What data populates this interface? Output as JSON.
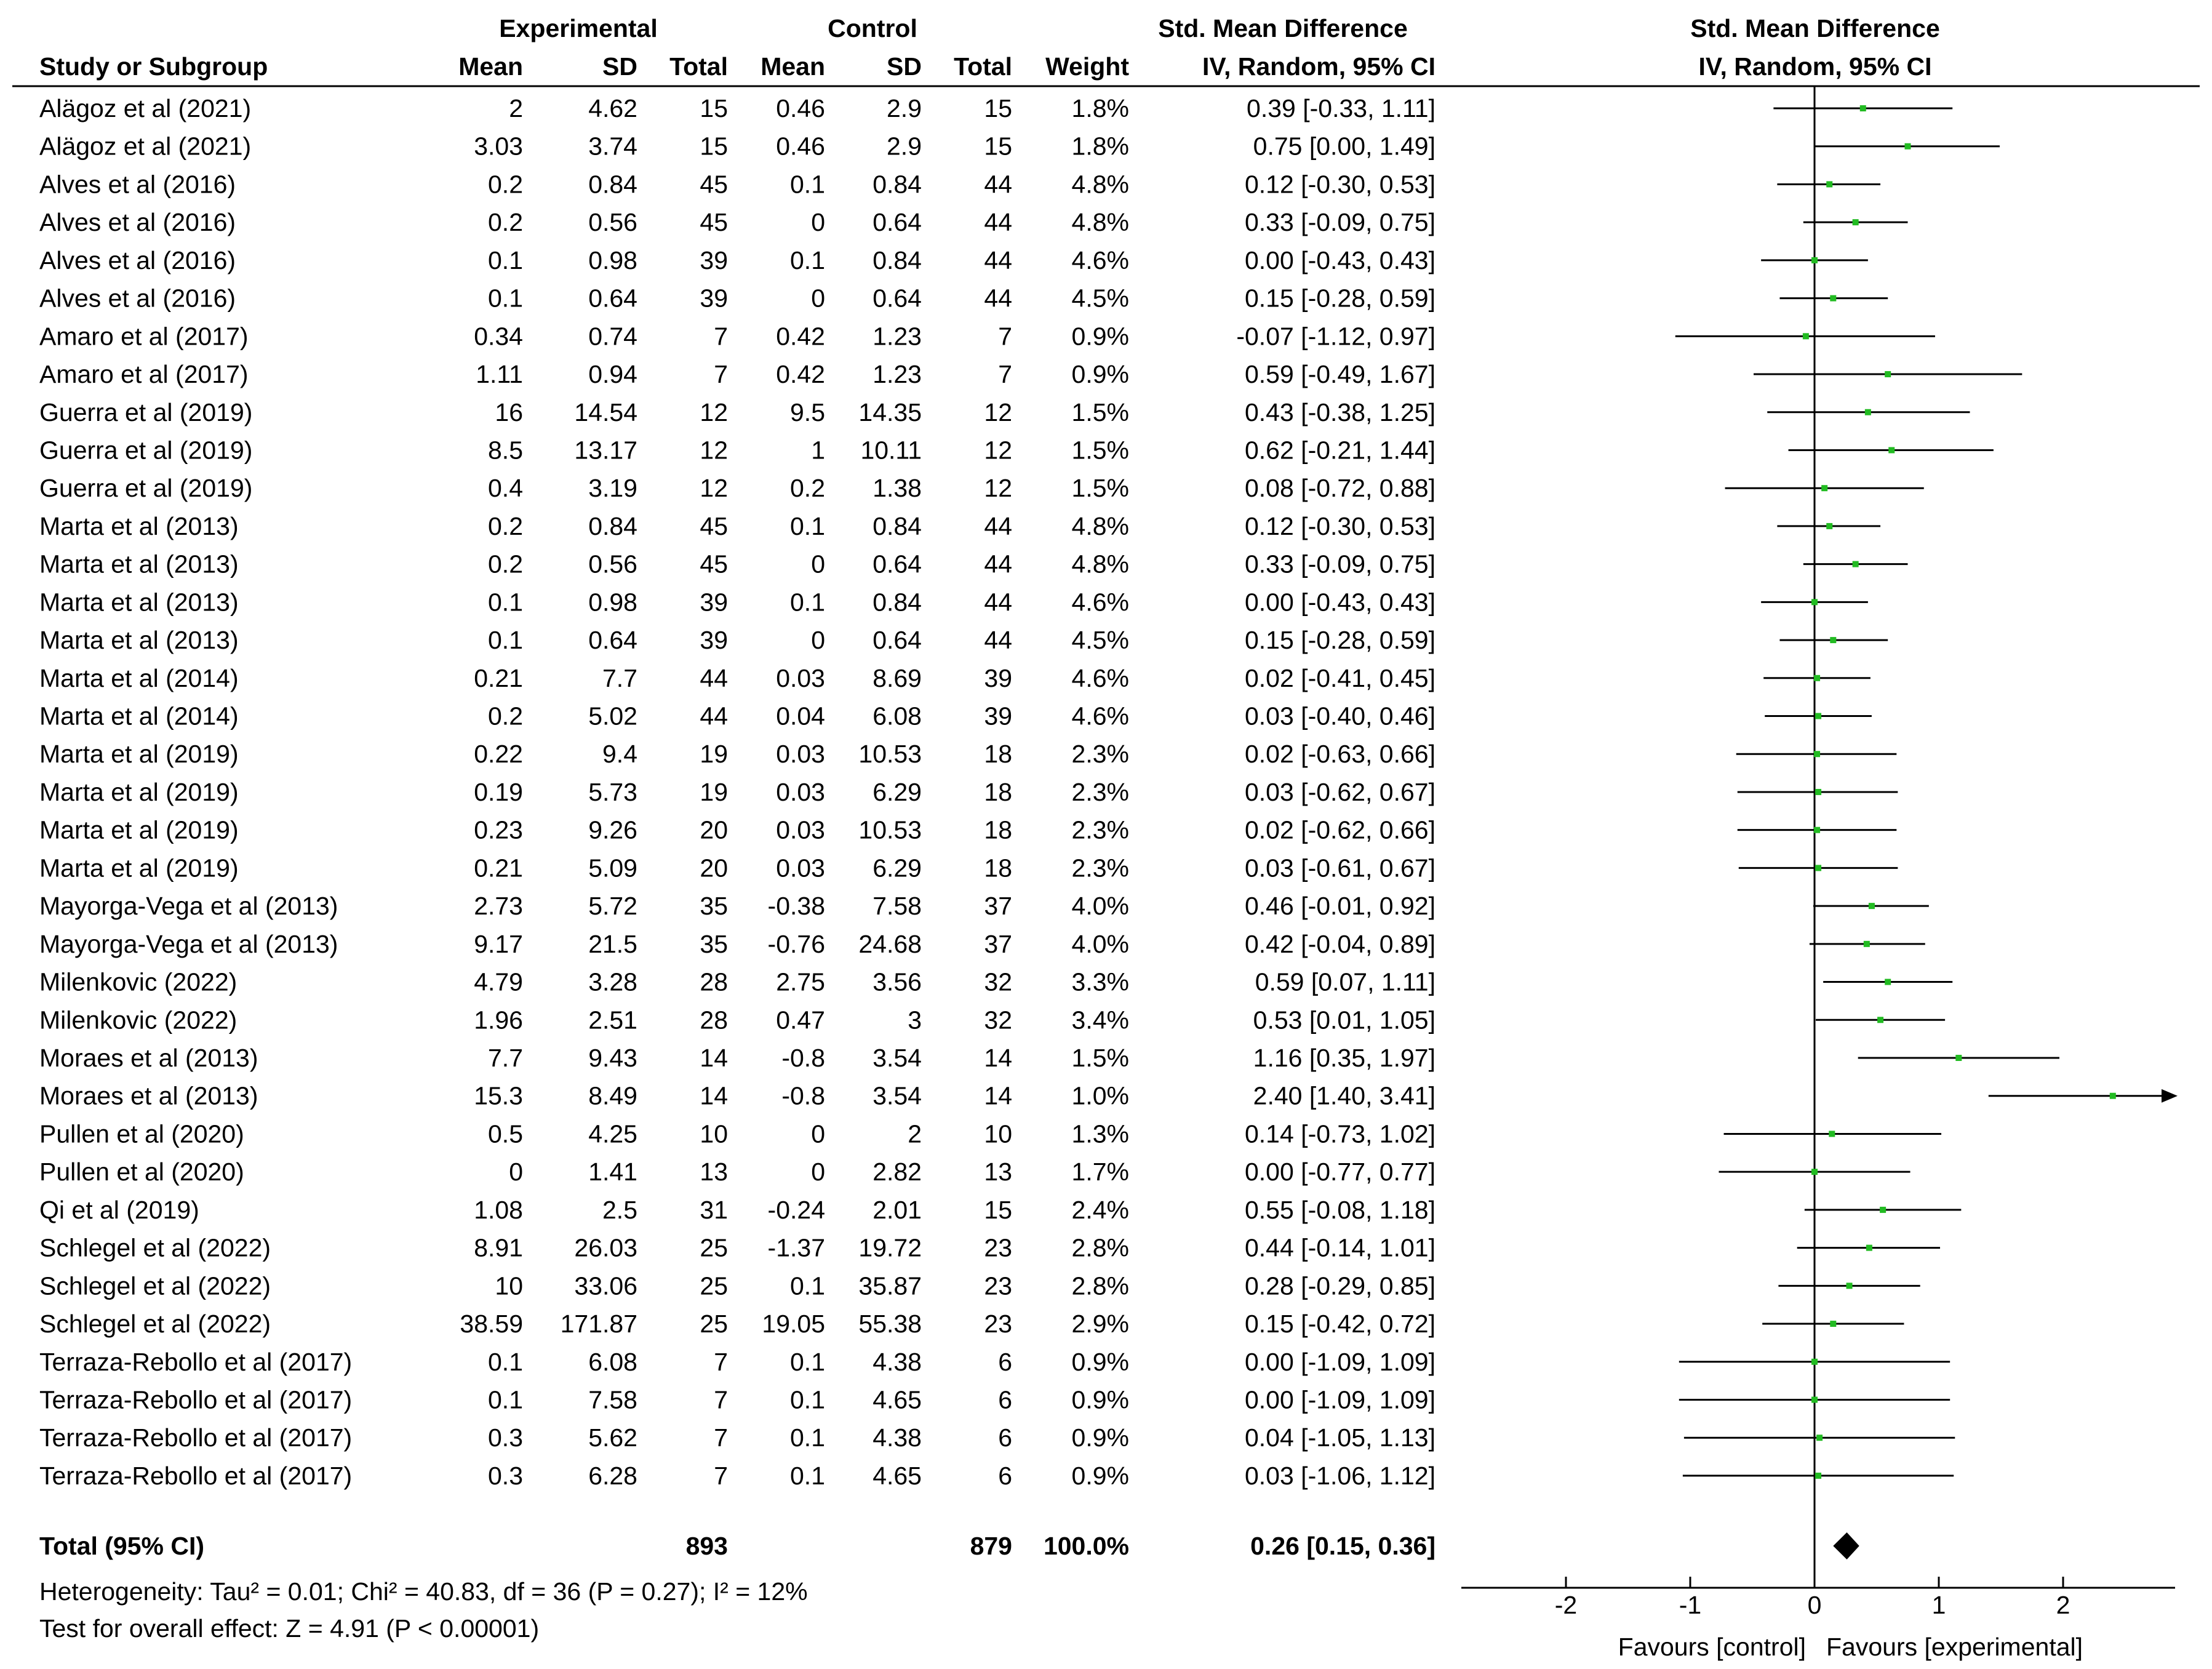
{
  "chart_data": {
    "type": "forest",
    "header": {
      "experimental": "Experimental",
      "control": "Control",
      "smd": "Std. Mean Difference",
      "plot_title": "Std. Mean Difference",
      "study_or_subgroup": "Study or Subgroup",
      "mean": "Mean",
      "sd": "SD",
      "total": "Total",
      "weight": "Weight",
      "method": "IV, Random, 95% CI"
    },
    "studies": [
      {
        "study": "Alägoz et al (2021)",
        "exp_mean": "2",
        "exp_sd": "4.62",
        "exp_total": "15",
        "ctl_mean": "0.46",
        "ctl_sd": "2.9",
        "ctl_total": "15",
        "weight": "1.8%",
        "ci_text": "0.39 [-0.33, 1.11]",
        "est": 0.39,
        "lo": -0.33,
        "hi": 1.11
      },
      {
        "study": "Alägoz et al (2021)",
        "exp_mean": "3.03",
        "exp_sd": "3.74",
        "exp_total": "15",
        "ctl_mean": "0.46",
        "ctl_sd": "2.9",
        "ctl_total": "15",
        "weight": "1.8%",
        "ci_text": "0.75 [0.00, 1.49]",
        "est": 0.75,
        "lo": 0.0,
        "hi": 1.49
      },
      {
        "study": "Alves et al (2016)",
        "exp_mean": "0.2",
        "exp_sd": "0.84",
        "exp_total": "45",
        "ctl_mean": "0.1",
        "ctl_sd": "0.84",
        "ctl_total": "44",
        "weight": "4.8%",
        "ci_text": "0.12 [-0.30, 0.53]",
        "est": 0.12,
        "lo": -0.3,
        "hi": 0.53
      },
      {
        "study": "Alves et al (2016)",
        "exp_mean": "0.2",
        "exp_sd": "0.56",
        "exp_total": "45",
        "ctl_mean": "0",
        "ctl_sd": "0.64",
        "ctl_total": "44",
        "weight": "4.8%",
        "ci_text": "0.33 [-0.09, 0.75]",
        "est": 0.33,
        "lo": -0.09,
        "hi": 0.75
      },
      {
        "study": "Alves et al (2016)",
        "exp_mean": "0.1",
        "exp_sd": "0.98",
        "exp_total": "39",
        "ctl_mean": "0.1",
        "ctl_sd": "0.84",
        "ctl_total": "44",
        "weight": "4.6%",
        "ci_text": "0.00 [-0.43, 0.43]",
        "est": 0.0,
        "lo": -0.43,
        "hi": 0.43
      },
      {
        "study": "Alves et al (2016)",
        "exp_mean": "0.1",
        "exp_sd": "0.64",
        "exp_total": "39",
        "ctl_mean": "0",
        "ctl_sd": "0.64",
        "ctl_total": "44",
        "weight": "4.5%",
        "ci_text": "0.15 [-0.28, 0.59]",
        "est": 0.15,
        "lo": -0.28,
        "hi": 0.59
      },
      {
        "study": "Amaro et al (2017)",
        "exp_mean": "0.34",
        "exp_sd": "0.74",
        "exp_total": "7",
        "ctl_mean": "0.42",
        "ctl_sd": "1.23",
        "ctl_total": "7",
        "weight": "0.9%",
        "ci_text": "-0.07 [-1.12, 0.97]",
        "est": -0.07,
        "lo": -1.12,
        "hi": 0.97
      },
      {
        "study": "Amaro et al (2017)",
        "exp_mean": "1.11",
        "exp_sd": "0.94",
        "exp_total": "7",
        "ctl_mean": "0.42",
        "ctl_sd": "1.23",
        "ctl_total": "7",
        "weight": "0.9%",
        "ci_text": "0.59 [-0.49, 1.67]",
        "est": 0.59,
        "lo": -0.49,
        "hi": 1.67
      },
      {
        "study": "Guerra et al (2019)",
        "exp_mean": "16",
        "exp_sd": "14.54",
        "exp_total": "12",
        "ctl_mean": "9.5",
        "ctl_sd": "14.35",
        "ctl_total": "12",
        "weight": "1.5%",
        "ci_text": "0.43 [-0.38, 1.25]",
        "est": 0.43,
        "lo": -0.38,
        "hi": 1.25
      },
      {
        "study": "Guerra et al (2019)",
        "exp_mean": "8.5",
        "exp_sd": "13.17",
        "exp_total": "12",
        "ctl_mean": "1",
        "ctl_sd": "10.11",
        "ctl_total": "12",
        "weight": "1.5%",
        "ci_text": "0.62 [-0.21, 1.44]",
        "est": 0.62,
        "lo": -0.21,
        "hi": 1.44
      },
      {
        "study": "Guerra et al (2019)",
        "exp_mean": "0.4",
        "exp_sd": "3.19",
        "exp_total": "12",
        "ctl_mean": "0.2",
        "ctl_sd": "1.38",
        "ctl_total": "12",
        "weight": "1.5%",
        "ci_text": "0.08 [-0.72, 0.88]",
        "est": 0.08,
        "lo": -0.72,
        "hi": 0.88
      },
      {
        "study": "Marta et al (2013)",
        "exp_mean": "0.2",
        "exp_sd": "0.84",
        "exp_total": "45",
        "ctl_mean": "0.1",
        "ctl_sd": "0.84",
        "ctl_total": "44",
        "weight": "4.8%",
        "ci_text": "0.12 [-0.30, 0.53]",
        "est": 0.12,
        "lo": -0.3,
        "hi": 0.53
      },
      {
        "study": "Marta et al (2013)",
        "exp_mean": "0.2",
        "exp_sd": "0.56",
        "exp_total": "45",
        "ctl_mean": "0",
        "ctl_sd": "0.64",
        "ctl_total": "44",
        "weight": "4.8%",
        "ci_text": "0.33 [-0.09, 0.75]",
        "est": 0.33,
        "lo": -0.09,
        "hi": 0.75
      },
      {
        "study": "Marta et al (2013)",
        "exp_mean": "0.1",
        "exp_sd": "0.98",
        "exp_total": "39",
        "ctl_mean": "0.1",
        "ctl_sd": "0.84",
        "ctl_total": "44",
        "weight": "4.6%",
        "ci_text": "0.00 [-0.43, 0.43]",
        "est": 0.0,
        "lo": -0.43,
        "hi": 0.43
      },
      {
        "study": "Marta et al (2013)",
        "exp_mean": "0.1",
        "exp_sd": "0.64",
        "exp_total": "39",
        "ctl_mean": "0",
        "ctl_sd": "0.64",
        "ctl_total": "44",
        "weight": "4.5%",
        "ci_text": "0.15 [-0.28, 0.59]",
        "est": 0.15,
        "lo": -0.28,
        "hi": 0.59
      },
      {
        "study": "Marta et al (2014)",
        "exp_mean": "0.21",
        "exp_sd": "7.7",
        "exp_total": "44",
        "ctl_mean": "0.03",
        "ctl_sd": "8.69",
        "ctl_total": "39",
        "weight": "4.6%",
        "ci_text": "0.02 [-0.41, 0.45]",
        "est": 0.02,
        "lo": -0.41,
        "hi": 0.45
      },
      {
        "study": "Marta et al (2014)",
        "exp_mean": "0.2",
        "exp_sd": "5.02",
        "exp_total": "44",
        "ctl_mean": "0.04",
        "ctl_sd": "6.08",
        "ctl_total": "39",
        "weight": "4.6%",
        "ci_text": "0.03 [-0.40, 0.46]",
        "est": 0.03,
        "lo": -0.4,
        "hi": 0.46
      },
      {
        "study": "Marta et al (2019)",
        "exp_mean": "0.22",
        "exp_sd": "9.4",
        "exp_total": "19",
        "ctl_mean": "0.03",
        "ctl_sd": "10.53",
        "ctl_total": "18",
        "weight": "2.3%",
        "ci_text": "0.02 [-0.63, 0.66]",
        "est": 0.02,
        "lo": -0.63,
        "hi": 0.66
      },
      {
        "study": "Marta et al (2019)",
        "exp_mean": "0.19",
        "exp_sd": "5.73",
        "exp_total": "19",
        "ctl_mean": "0.03",
        "ctl_sd": "6.29",
        "ctl_total": "18",
        "weight": "2.3%",
        "ci_text": "0.03 [-0.62, 0.67]",
        "est": 0.03,
        "lo": -0.62,
        "hi": 0.67
      },
      {
        "study": "Marta et al (2019)",
        "exp_mean": "0.23",
        "exp_sd": "9.26",
        "exp_total": "20",
        "ctl_mean": "0.03",
        "ctl_sd": "10.53",
        "ctl_total": "18",
        "weight": "2.3%",
        "ci_text": "0.02 [-0.62, 0.66]",
        "est": 0.02,
        "lo": -0.62,
        "hi": 0.66
      },
      {
        "study": "Marta et al (2019)",
        "exp_mean": "0.21",
        "exp_sd": "5.09",
        "exp_total": "20",
        "ctl_mean": "0.03",
        "ctl_sd": "6.29",
        "ctl_total": "18",
        "weight": "2.3%",
        "ci_text": "0.03 [-0.61, 0.67]",
        "est": 0.03,
        "lo": -0.61,
        "hi": 0.67
      },
      {
        "study": "Mayorga-Vega et al (2013)",
        "exp_mean": "2.73",
        "exp_sd": "5.72",
        "exp_total": "35",
        "ctl_mean": "-0.38",
        "ctl_sd": "7.58",
        "ctl_total": "37",
        "weight": "4.0%",
        "ci_text": "0.46 [-0.01, 0.92]",
        "est": 0.46,
        "lo": -0.01,
        "hi": 0.92
      },
      {
        "study": "Mayorga-Vega et al (2013)",
        "exp_mean": "9.17",
        "exp_sd": "21.5",
        "exp_total": "35",
        "ctl_mean": "-0.76",
        "ctl_sd": "24.68",
        "ctl_total": "37",
        "weight": "4.0%",
        "ci_text": "0.42 [-0.04, 0.89]",
        "est": 0.42,
        "lo": -0.04,
        "hi": 0.89
      },
      {
        "study": "Milenkovic (2022)",
        "exp_mean": "4.79",
        "exp_sd": "3.28",
        "exp_total": "28",
        "ctl_mean": "2.75",
        "ctl_sd": "3.56",
        "ctl_total": "32",
        "weight": "3.3%",
        "ci_text": "0.59 [0.07, 1.11]",
        "est": 0.59,
        "lo": 0.07,
        "hi": 1.11
      },
      {
        "study": "Milenkovic (2022)",
        "exp_mean": "1.96",
        "exp_sd": "2.51",
        "exp_total": "28",
        "ctl_mean": "0.47",
        "ctl_sd": "3",
        "ctl_total": "32",
        "weight": "3.4%",
        "ci_text": "0.53 [0.01, 1.05]",
        "est": 0.53,
        "lo": 0.01,
        "hi": 1.05
      },
      {
        "study": "Moraes et al (2013)",
        "exp_mean": "7.7",
        "exp_sd": "9.43",
        "exp_total": "14",
        "ctl_mean": "-0.8",
        "ctl_sd": "3.54",
        "ctl_total": "14",
        "weight": "1.5%",
        "ci_text": "1.16 [0.35, 1.97]",
        "est": 1.16,
        "lo": 0.35,
        "hi": 1.97
      },
      {
        "study": "Moraes et al (2013)",
        "exp_mean": "15.3",
        "exp_sd": "8.49",
        "exp_total": "14",
        "ctl_mean": "-0.8",
        "ctl_sd": "3.54",
        "ctl_total": "14",
        "weight": "1.0%",
        "ci_text": "2.40 [1.40, 3.41]",
        "est": 2.4,
        "lo": 1.4,
        "hi": 3.41
      },
      {
        "study": "Pullen et al (2020)",
        "exp_mean": "0.5",
        "exp_sd": "4.25",
        "exp_total": "10",
        "ctl_mean": "0",
        "ctl_sd": "2",
        "ctl_total": "10",
        "weight": "1.3%",
        "ci_text": "0.14 [-0.73, 1.02]",
        "est": 0.14,
        "lo": -0.73,
        "hi": 1.02
      },
      {
        "study": "Pullen et al (2020)",
        "exp_mean": "0",
        "exp_sd": "1.41",
        "exp_total": "13",
        "ctl_mean": "0",
        "ctl_sd": "2.82",
        "ctl_total": "13",
        "weight": "1.7%",
        "ci_text": "0.00 [-0.77, 0.77]",
        "est": 0.0,
        "lo": -0.77,
        "hi": 0.77
      },
      {
        "study": "Qi et al (2019)",
        "exp_mean": "1.08",
        "exp_sd": "2.5",
        "exp_total": "31",
        "ctl_mean": "-0.24",
        "ctl_sd": "2.01",
        "ctl_total": "15",
        "weight": "2.4%",
        "ci_text": "0.55 [-0.08, 1.18]",
        "est": 0.55,
        "lo": -0.08,
        "hi": 1.18
      },
      {
        "study": "Schlegel et al (2022)",
        "exp_mean": "8.91",
        "exp_sd": "26.03",
        "exp_total": "25",
        "ctl_mean": "-1.37",
        "ctl_sd": "19.72",
        "ctl_total": "23",
        "weight": "2.8%",
        "ci_text": "0.44 [-0.14, 1.01]",
        "est": 0.44,
        "lo": -0.14,
        "hi": 1.01
      },
      {
        "study": "Schlegel et al (2022)",
        "exp_mean": "10",
        "exp_sd": "33.06",
        "exp_total": "25",
        "ctl_mean": "0.1",
        "ctl_sd": "35.87",
        "ctl_total": "23",
        "weight": "2.8%",
        "ci_text": "0.28 [-0.29, 0.85]",
        "est": 0.28,
        "lo": -0.29,
        "hi": 0.85
      },
      {
        "study": "Schlegel et al (2022)",
        "exp_mean": "38.59",
        "exp_sd": "171.87",
        "exp_total": "25",
        "ctl_mean": "19.05",
        "ctl_sd": "55.38",
        "ctl_total": "23",
        "weight": "2.9%",
        "ci_text": "0.15 [-0.42, 0.72]",
        "est": 0.15,
        "lo": -0.42,
        "hi": 0.72
      },
      {
        "study": "Terraza-Rebollo et al (2017)",
        "exp_mean": "0.1",
        "exp_sd": "6.08",
        "exp_total": "7",
        "ctl_mean": "0.1",
        "ctl_sd": "4.38",
        "ctl_total": "6",
        "weight": "0.9%",
        "ci_text": "0.00 [-1.09, 1.09]",
        "est": 0.0,
        "lo": -1.09,
        "hi": 1.09
      },
      {
        "study": "Terraza-Rebollo et al (2017)",
        "exp_mean": "0.1",
        "exp_sd": "7.58",
        "exp_total": "7",
        "ctl_mean": "0.1",
        "ctl_sd": "4.65",
        "ctl_total": "6",
        "weight": "0.9%",
        "ci_text": "0.00 [-1.09, 1.09]",
        "est": 0.0,
        "lo": -1.09,
        "hi": 1.09
      },
      {
        "study": "Terraza-Rebollo et al (2017)",
        "exp_mean": "0.3",
        "exp_sd": "5.62",
        "exp_total": "7",
        "ctl_mean": "0.1",
        "ctl_sd": "4.38",
        "ctl_total": "6",
        "weight": "0.9%",
        "ci_text": "0.04 [-1.05, 1.13]",
        "est": 0.04,
        "lo": -1.05,
        "hi": 1.13
      },
      {
        "study": "Terraza-Rebollo et al (2017)",
        "exp_mean": "0.3",
        "exp_sd": "6.28",
        "exp_total": "7",
        "ctl_mean": "0.1",
        "ctl_sd": "4.65",
        "ctl_total": "6",
        "weight": "0.9%",
        "ci_text": "0.03 [-1.06, 1.12]",
        "est": 0.03,
        "lo": -1.06,
        "hi": 1.12
      }
    ],
    "total": {
      "label": "Total (95% CI)",
      "exp_total": "893",
      "ctl_total": "879",
      "weight": "100.0%",
      "ci_text": "0.26 [0.15, 0.36]",
      "est": 0.26,
      "lo": 0.15,
      "hi": 0.36
    },
    "heterogeneity": "Heterogeneity: Tau² = 0.01; Chi² = 40.83, df = 36 (P = 0.27); I² = 12%",
    "overall_effect": "Test for overall effect: Z = 4.91 (P < 0.00001)",
    "x_axis": {
      "range": [
        -2.9,
        2.9
      ],
      "ticks": [
        -2,
        -1,
        0,
        1,
        2
      ],
      "tick_labels": [
        "-2",
        "-1",
        "0",
        "1",
        "2"
      ],
      "left_label": "Favours [control]",
      "right_label": "Favours [experimental]"
    },
    "colors": {
      "text": "#000000",
      "point": "#22bb22",
      "line": "#000000"
    }
  }
}
